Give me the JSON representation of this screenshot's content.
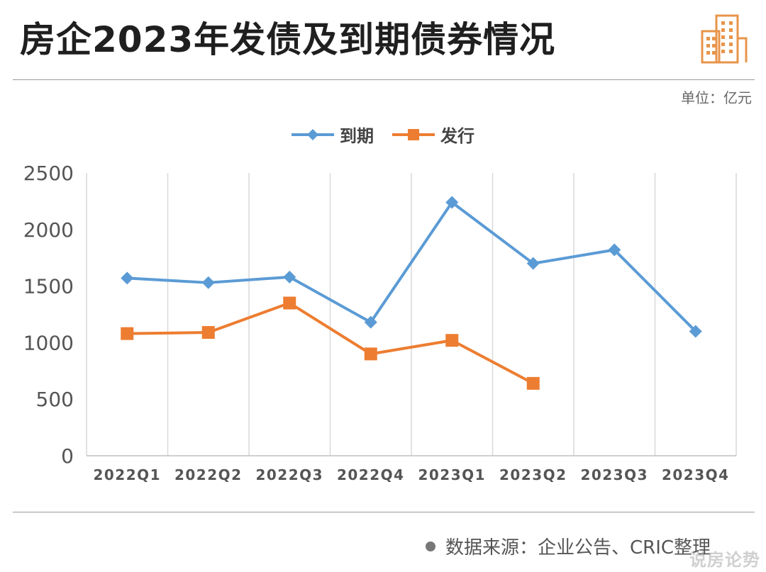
{
  "header": {
    "title": "房企2023年发债及到期债券情况",
    "unit": "单位：亿元"
  },
  "footer": {
    "source": "数据来源：企业公告、CRIC整理",
    "watermark": "说房论势"
  },
  "icons": {
    "logo": "building-icon"
  },
  "colors": {
    "maturity": "#5b9bd5",
    "issuance": "#ed7d31",
    "grid": "#d9d9d9"
  },
  "chart_data": {
    "type": "line",
    "categories": [
      "2022Q1",
      "2022Q2",
      "2022Q3",
      "2022Q4",
      "2023Q1",
      "2023Q2",
      "2023Q3",
      "2023Q4"
    ],
    "series": [
      {
        "name": "到期",
        "values": [
          1570,
          1530,
          1580,
          1180,
          2240,
          1700,
          1820,
          1100
        ]
      },
      {
        "name": "发行",
        "values": [
          1080,
          1090,
          1350,
          900,
          1020,
          640,
          null,
          null
        ]
      }
    ],
    "ylim": [
      0,
      2500
    ],
    "yticks": [
      0,
      500,
      1000,
      1500,
      2000,
      2500
    ],
    "grid": "vertical",
    "legend": "top-center",
    "markers": {
      "到期": "diamond",
      "发行": "square"
    }
  }
}
